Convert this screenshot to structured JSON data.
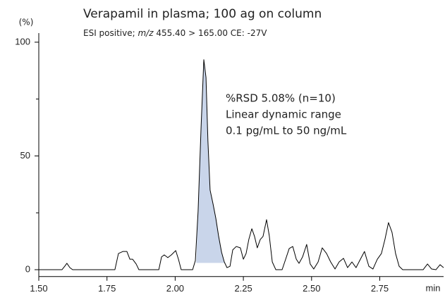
{
  "chart_data": {
    "type": "line",
    "title": "Verapamil in plasma; 100 ag on column",
    "subtitle_parts": [
      "ESI positive; ",
      "m/z",
      " 455.40 > 165.00   CE: -27V"
    ],
    "y_unit": "(%)",
    "x_unit": "min",
    "annotations": [
      "%RSD 5.08% (n=10)",
      "Linear dynamic range",
      "0.1 pg/mL to 50 ng/mL"
    ],
    "xlim": [
      1.5,
      2.984
    ],
    "ylim": [
      -3,
      104
    ],
    "xticks": [
      {
        "value": 1.5,
        "label": "1.50"
      },
      {
        "value": 1.75,
        "label": "1.75"
      },
      {
        "value": 2.0,
        "label": "2.00"
      },
      {
        "value": 2.25,
        "label": "2.25"
      },
      {
        "value": 2.5,
        "label": "2.50"
      },
      {
        "value": 2.75,
        "label": "2.75"
      }
    ],
    "yticks": [
      0,
      50,
      100
    ],
    "y_minor_ticks": [
      25,
      75
    ],
    "color": "#000000",
    "shaded_xrange": [
      2.077,
      2.185
    ],
    "shaded_base": 3,
    "shaded_color": "#c9d5ea",
    "x": [
      1.5,
      1.585,
      1.595,
      1.603,
      1.614,
      1.624,
      1.779,
      1.792,
      1.808,
      1.823,
      1.834,
      1.844,
      1.857,
      1.867,
      1.94,
      1.95,
      1.96,
      1.973,
      1.986,
      2.002,
      2.012,
      2.022,
      2.064,
      2.074,
      2.084,
      2.095,
      2.105,
      2.113,
      2.12,
      2.128,
      2.139,
      2.149,
      2.159,
      2.17,
      2.18,
      2.19,
      2.201,
      2.211,
      2.224,
      2.239,
      2.25,
      2.26,
      2.27,
      2.281,
      2.291,
      2.301,
      2.312,
      2.322,
      2.335,
      2.345,
      2.356,
      2.369,
      2.392,
      2.405,
      2.418,
      2.431,
      2.444,
      2.454,
      2.467,
      2.482,
      2.495,
      2.508,
      2.524,
      2.539,
      2.555,
      2.57,
      2.586,
      2.601,
      2.617,
      2.632,
      2.648,
      2.663,
      2.679,
      2.694,
      2.71,
      2.725,
      2.741,
      2.756,
      2.769,
      2.782,
      2.795,
      2.808,
      2.821,
      2.834,
      2.909,
      2.925,
      2.94,
      2.956,
      2.971,
      2.984
    ],
    "values": [
      0,
      0,
      1.5,
      2.8,
      0.9,
      0,
      0,
      7.1,
      8.0,
      8.0,
      4.6,
      4.6,
      2.5,
      0,
      0,
      5.6,
      6.5,
      5.3,
      6.5,
      8.4,
      4.6,
      0,
      0,
      4.0,
      25.7,
      62.8,
      92.3,
      84.5,
      56.7,
      35.0,
      28.8,
      22.6,
      14.9,
      7.7,
      3.4,
      0.9,
      1.5,
      8.7,
      10.2,
      9.6,
      4.6,
      7.1,
      13.3,
      18.0,
      14.6,
      9.6,
      13.3,
      14.6,
      22.0,
      14.9,
      3.4,
      0,
      0,
      4.6,
      9.3,
      10.2,
      4.6,
      2.8,
      5.6,
      11.1,
      2.5,
      0.3,
      3.4,
      9.6,
      7.1,
      3.4,
      0.3,
      3.4,
      5.0,
      0.9,
      3.4,
      0.9,
      4.6,
      8.0,
      1.5,
      0.3,
      4.6,
      7.1,
      13.3,
      20.7,
      16.4,
      7.1,
      1.5,
      0,
      0,
      2.5,
      0.3,
      0,
      2.2,
      0.9
    ]
  }
}
